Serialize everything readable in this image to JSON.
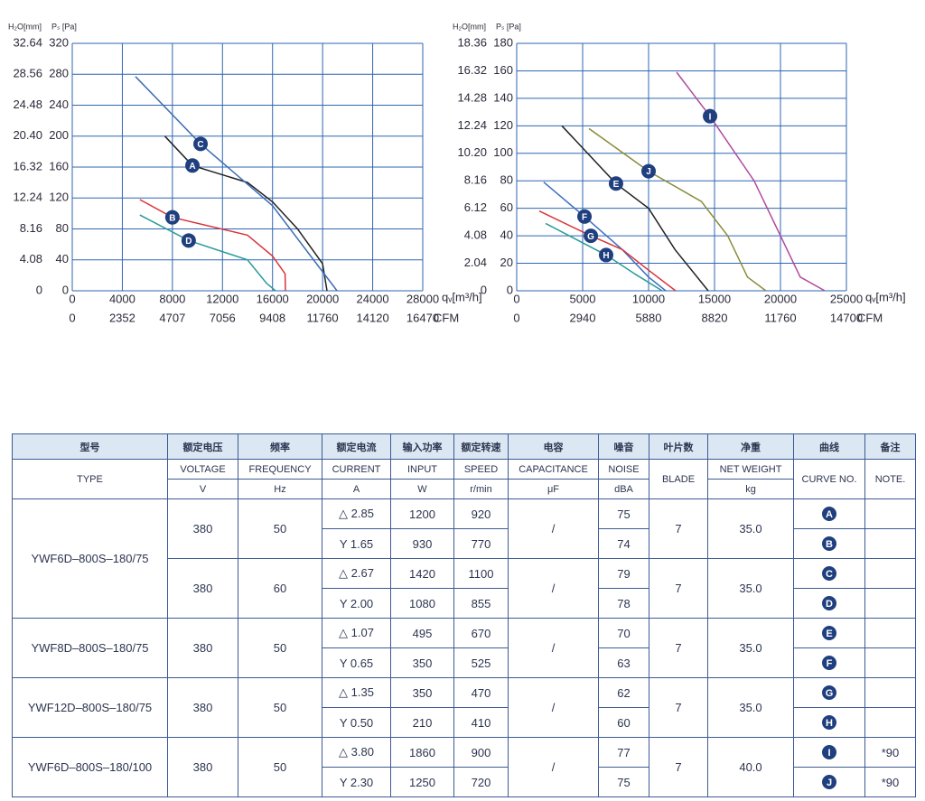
{
  "chart_data": [
    {
      "type": "line",
      "y_label": "Pₛ [Pa]",
      "y2_label": "H₂O[mm]",
      "x_label": "qᵥ[m³/h]",
      "x2_label": "CFM",
      "grid": true,
      "xlim": [
        0,
        28000
      ],
      "xticks": [
        0,
        4000,
        8000,
        12000,
        16000,
        20000,
        24000,
        28000
      ],
      "x2lim": [
        0,
        16470
      ],
      "x2ticks": [
        0,
        2352,
        4707,
        7056,
        9408,
        11760,
        14120,
        16470
      ],
      "ylim": [
        0,
        320
      ],
      "yticks": [
        0,
        40,
        80,
        120,
        160,
        200,
        240,
        280,
        320
      ],
      "y2lim": [
        0,
        32.64
      ],
      "y2ticks": [
        0,
        4.08,
        8.16,
        12.24,
        16.32,
        {
          "value": 20.4,
          "label": "20.40"
        },
        24.48,
        28.56,
        32.64
      ],
      "series": [
        {
          "name": "A",
          "color": "#222222",
          "x": [
            7400,
            9600,
            14000,
            16000,
            18000,
            20000,
            20350
          ],
          "values": [
            200,
            162,
            140,
            115,
            80,
            35,
            0
          ]
        },
        {
          "name": "C",
          "color": "#3b6db5",
          "x": [
            5050,
            10250,
            16000,
            21150
          ],
          "values": [
            277,
            190,
            110,
            0
          ]
        },
        {
          "name": "B",
          "color": "#d9343a",
          "x": [
            5400,
            8000,
            14000,
            16000,
            17000,
            17030
          ],
          "values": [
            118,
            95,
            72,
            45,
            22,
            0
          ]
        },
        {
          "name": "D",
          "color": "#2a9a9a",
          "x": [
            5400,
            9300,
            14000,
            15500,
            16240
          ],
          "values": [
            98,
            65,
            40,
            10,
            0
          ]
        }
      ]
    },
    {
      "type": "line",
      "y_label": "Pₛ [Pa]",
      "y2_label": "H₂O[mm]",
      "x_label": "qᵥ[m³/h]",
      "x2_label": "CFM",
      "grid": true,
      "xlim": [
        0,
        25000
      ],
      "xticks": [
        0,
        5000,
        10000,
        15000,
        20000,
        25000
      ],
      "x2lim": [
        0,
        14700
      ],
      "x2ticks": [
        0,
        2940,
        5880,
        8820,
        11760,
        14700
      ],
      "ylim": [
        0,
        180
      ],
      "yticks": [
        0,
        20,
        40,
        60,
        80,
        100,
        120,
        140,
        160,
        180
      ],
      "y2lim": [
        0,
        18.36
      ],
      "y2ticks": [
        0,
        2.04,
        4.08,
        6.12,
        8.16,
        {
          "value": 10.2,
          "label": "10.20"
        },
        12.24,
        14.28,
        16.32,
        18.36
      ],
      "series": [
        {
          "name": "E",
          "color": "#222222",
          "x": [
            3425,
            7530,
            10000,
            12000,
            14520
          ],
          "values": [
            120,
            78,
            60,
            30,
            0
          ]
        },
        {
          "name": "F",
          "color": "#3f6fc0",
          "x": [
            2050,
            5140,
            8000,
            10000,
            11300
          ],
          "values": [
            79,
            54,
            30,
            10,
            0
          ]
        },
        {
          "name": "G",
          "color": "#d9343a",
          "x": [
            1710,
            5620,
            8000,
            10000,
            12050
          ],
          "values": [
            58,
            40,
            30,
            15,
            0
          ]
        },
        {
          "name": "H",
          "color": "#2a9a9a",
          "x": [
            2190,
            6780,
            9000,
            11030
          ],
          "values": [
            49,
            26,
            12,
            0
          ]
        },
        {
          "name": "J",
          "color": "#8a8a3a",
          "x": [
            5480,
            10000,
            14000,
            16000,
            17500,
            18900
          ],
          "values": [
            118,
            87,
            65,
            40,
            10,
            0
          ]
        },
        {
          "name": "I",
          "color": "#b04aa0",
          "x": [
            12120,
            14660,
            18000,
            20000,
            21500,
            23360
          ],
          "values": [
            159,
            127,
            80,
            40,
            10,
            0
          ]
        }
      ]
    }
  ],
  "table": {
    "columns": [
      {
        "cn": "型号",
        "en": "TYPE"
      },
      {
        "cn": "额定电压",
        "en": "VOLTAGE",
        "unit": "V"
      },
      {
        "cn": "频率",
        "en": "FREQUENCY",
        "unit": "Hz"
      },
      {
        "cn": "额定电流",
        "en": "CURRENT",
        "unit": "A"
      },
      {
        "cn": "输入功率",
        "en": "INPUT",
        "unit": "W"
      },
      {
        "cn": "额定转速",
        "en": "SPEED",
        "unit": "r/min"
      },
      {
        "cn": "电容",
        "en": "CAPACITANCE",
        "unit": "μF"
      },
      {
        "cn": "噪音",
        "en": "NOISE",
        "unit": "dBA"
      },
      {
        "cn": "叶片数",
        "en": "BLADE"
      },
      {
        "cn": "净重",
        "en": "NET WEIGHT",
        "unit": "kg"
      },
      {
        "cn": "曲线",
        "en": "CURVE NO."
      },
      {
        "cn": "备注",
        "en": "NOTE."
      }
    ],
    "models": [
      {
        "type": "YWF6D–800S–180/75",
        "groups": [
          {
            "voltage": "380",
            "frequency": "50",
            "capacitance": "/",
            "blade": "7",
            "weight": "35.0",
            "rows": [
              {
                "current": "△ 2.85",
                "input": "1200",
                "speed": "920",
                "noise": "75",
                "curve": "A"
              },
              {
                "current": "Y 1.65",
                "input": "930",
                "speed": "770",
                "noise": "74",
                "curve": "B"
              }
            ]
          },
          {
            "voltage": "380",
            "frequency": "60",
            "capacitance": "/",
            "blade": "7",
            "weight": "35.0",
            "rows": [
              {
                "current": "△ 2.67",
                "input": "1420",
                "speed": "1100",
                "noise": "79",
                "curve": "C"
              },
              {
                "current": "Y 2.00",
                "input": "1080",
                "speed": "855",
                "noise": "78",
                "curve": "D"
              }
            ]
          }
        ]
      },
      {
        "type": "YWF8D–800S–180/75",
        "groups": [
          {
            "voltage": "380",
            "frequency": "50",
            "capacitance": "/",
            "blade": "7",
            "weight": "35.0",
            "rows": [
              {
                "current": "△ 1.07",
                "input": "495",
                "speed": "670",
                "noise": "70",
                "curve": "E"
              },
              {
                "current": "Y 0.65",
                "input": "350",
                "speed": "525",
                "noise": "63",
                "curve": "F"
              }
            ]
          }
        ]
      },
      {
        "type": "YWF12D–800S–180/75",
        "groups": [
          {
            "voltage": "380",
            "frequency": "50",
            "capacitance": "/",
            "blade": "7",
            "weight": "35.0",
            "rows": [
              {
                "current": "△ 1.35",
                "input": "350",
                "speed": "470",
                "noise": "62",
                "curve": "G"
              },
              {
                "current": "Y 0.50",
                "input": "210",
                "speed": "410",
                "noise": "60",
                "curve": "H"
              }
            ]
          }
        ]
      },
      {
        "type": "YWF6D–800S–180/100",
        "groups": [
          {
            "voltage": "380",
            "frequency": "50",
            "capacitance": "/",
            "blade": "7",
            "weight": "40.0",
            "rows": [
              {
                "current": "△ 3.80",
                "input": "1860",
                "speed": "900",
                "noise": "77",
                "curve": "I",
                "note": "*90"
              },
              {
                "current": "Y 2.30",
                "input": "1250",
                "speed": "720",
                "noise": "75",
                "curve": "J",
                "note": "*90"
              }
            ]
          }
        ]
      }
    ]
  }
}
